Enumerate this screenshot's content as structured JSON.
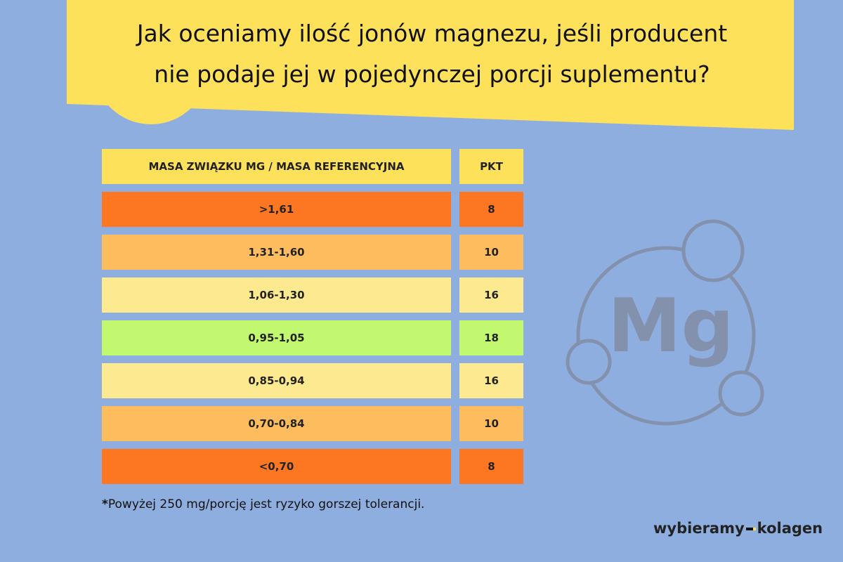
{
  "title": [
    "Jak oceniamy ilość jonów magnezu, jeśli producent",
    "nie podaje jej w pojedynczej porcji suplementu?"
  ],
  "table": {
    "header": [
      "MASA ZWIĄZKU MG / MASA REFERENCYJNA",
      "PKT"
    ],
    "rows": [
      {
        "range": ">1,61",
        "pkt": 8,
        "color": "#fd7622"
      },
      {
        "range": "1,31-1,60",
        "pkt": 10,
        "color": "#fdbd5e"
      },
      {
        "range": "1,06-1,30",
        "pkt": 16,
        "color": "#fde98f"
      },
      {
        "range": "0,95-1,05",
        "pkt": 18,
        "color": "#c2f870"
      },
      {
        "range": "0,85-0,94",
        "pkt": 16,
        "color": "#fde98f"
      },
      {
        "range": "0,70-0,84",
        "pkt": 10,
        "color": "#fdbd5e"
      },
      {
        "range": "<0,70",
        "pkt": 8,
        "color": "#fd7622"
      }
    ]
  },
  "footnote": {
    "mark": "*",
    "text": "Powyżej 250 mg/porcję jest ryzyko gorszej tolerancji."
  },
  "icon_text": "Mg",
  "logo": [
    "wybieramy",
    "kolagen"
  ]
}
